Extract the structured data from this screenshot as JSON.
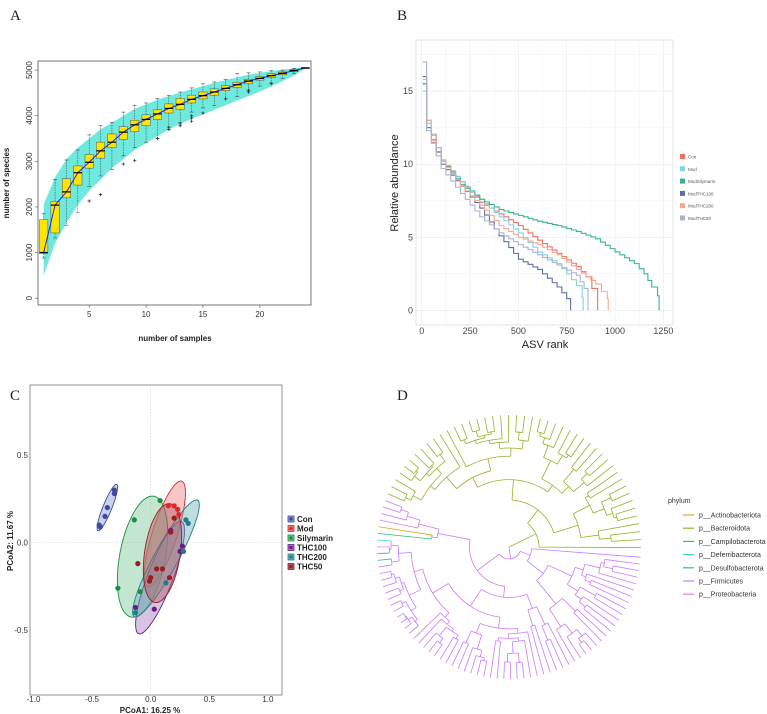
{
  "panels": {
    "a": "A",
    "b": "B",
    "c": "C",
    "d": "D"
  },
  "chart_data": [
    {
      "type": "box",
      "panel": "A",
      "xlabel": "number of samples",
      "ylabel": "number of species",
      "xlim": [
        0.5,
        24.5
      ],
      "ylim": [
        -150,
        5200
      ],
      "xticks": [
        5,
        10,
        15,
        20
      ],
      "yticks": [
        0,
        1000,
        2000,
        3000,
        4000,
        5000
      ],
      "box_color": "#ffe400",
      "band_color": "#6fe8de",
      "median_line_color": "#1f2bd6",
      "x": [
        1,
        2,
        3,
        4,
        5,
        6,
        7,
        8,
        9,
        10,
        11,
        12,
        13,
        14,
        15,
        16,
        17,
        18,
        19,
        20,
        21,
        22,
        23,
        24
      ],
      "median": [
        1000,
        2040,
        2330,
        2750,
        2980,
        3230,
        3420,
        3640,
        3800,
        3920,
        4040,
        4160,
        4250,
        4360,
        4440,
        4520,
        4600,
        4680,
        4760,
        4820,
        4880,
        4930,
        4990,
        5050
      ],
      "q1": [
        980,
        1430,
        2200,
        2480,
        2850,
        3070,
        3300,
        3480,
        3650,
        3780,
        3920,
        4060,
        4140,
        4280,
        4370,
        4450,
        4550,
        4620,
        4700,
        4780,
        4840,
        4900,
        4970,
        5050
      ],
      "q3": [
        1720,
        2120,
        2620,
        2900,
        3150,
        3420,
        3600,
        3760,
        3900,
        4020,
        4130,
        4260,
        4380,
        4450,
        4520,
        4590,
        4660,
        4730,
        4800,
        4860,
        4920,
        4960,
        5010,
        5050
      ],
      "whisker_low": [
        880,
        1320,
        1600,
        1870,
        2450,
        2680,
        2820,
        3120,
        3300,
        3420,
        3500,
        3700,
        3850,
        4080,
        4170,
        4220,
        4370,
        4420,
        4560,
        4650,
        4720,
        4820,
        4920,
        5050
      ],
      "whisker_high": [
        1850,
        2600,
        3030,
        3250,
        3580,
        3780,
        3850,
        4080,
        4230,
        4280,
        4380,
        4450,
        4520,
        4610,
        4700,
        4740,
        4800,
        4920,
        4940,
        4960,
        4990,
        5000,
        5040,
        5050
      ],
      "outliers": [
        [
          5,
          2130
        ],
        [
          6,
          2270
        ],
        [
          8,
          2940
        ],
        [
          9,
          3020
        ],
        [
          11,
          3500
        ],
        [
          12,
          3700
        ],
        [
          12,
          3750
        ],
        [
          13,
          3780
        ],
        [
          13,
          3820
        ],
        [
          14,
          3880
        ],
        [
          14,
          3950
        ],
        [
          14,
          4000
        ],
        [
          15,
          4060
        ],
        [
          17,
          4370
        ],
        [
          19,
          4520
        ],
        [
          19,
          4560
        ],
        [
          21,
          4700
        ]
      ],
      "band_upper": [
        2050,
        2650,
        3050,
        3300,
        3500,
        3700,
        3850,
        4000,
        4150,
        4250,
        4350,
        4430,
        4510,
        4580,
        4650,
        4720,
        4780,
        4840,
        4900,
        4940,
        4980,
        5010,
        5040,
        5060
      ],
      "band_lower": [
        500,
        1200,
        1650,
        2050,
        2350,
        2600,
        2850,
        3050,
        3250,
        3400,
        3550,
        3700,
        3820,
        3930,
        4030,
        4130,
        4230,
        4330,
        4430,
        4530,
        4640,
        4760,
        4880,
        5040
      ]
    },
    {
      "type": "line",
      "panel": "B",
      "xlabel": "ASV rank",
      "ylabel": "Relative abundance",
      "xlim": [
        -30,
        1300
      ],
      "ylim": [
        -1,
        18.5
      ],
      "xticks": [
        0,
        250,
        500,
        750,
        1000,
        1250
      ],
      "yticks": [
        0,
        5,
        10,
        15
      ],
      "grid": true,
      "legend_position": "right",
      "series": [
        {
          "name": "Con",
          "color": "#f0705f",
          "points": [
            [
              5,
              15.5
            ],
            [
              25,
              13
            ],
            [
              50,
              11.5
            ],
            [
              100,
              10.2
            ],
            [
              200,
              8.8
            ],
            [
              300,
              7.4
            ],
            [
              400,
              6.6
            ],
            [
              500,
              5.8
            ],
            [
              600,
              4.8
            ],
            [
              700,
              3.9
            ],
            [
              800,
              3.0
            ],
            [
              850,
              2.3
            ],
            [
              880,
              1.5
            ],
            [
              910,
              0.7
            ],
            [
              910,
              0
            ]
          ]
        },
        {
          "name": "Mod",
          "color": "#7fd3e3",
          "points": [
            [
              5,
              15
            ],
            [
              25,
              12.8
            ],
            [
              100,
              10.3
            ],
            [
              200,
              8.8
            ],
            [
              300,
              7.6
            ],
            [
              400,
              6.4
            ],
            [
              500,
              5.3
            ],
            [
              600,
              4.0
            ],
            [
              700,
              3.2
            ],
            [
              750,
              2.5
            ],
            [
              800,
              1.7
            ],
            [
              830,
              0.9
            ],
            [
              835,
              0
            ]
          ]
        },
        {
          "name": "ModSilymarin",
          "color": "#35b58f",
          "points": [
            [
              5,
              15.5
            ],
            [
              25,
              13
            ],
            [
              100,
              10.2
            ],
            [
              200,
              8.6
            ],
            [
              300,
              7.6
            ],
            [
              400,
              6.9
            ],
            [
              500,
              6.5
            ],
            [
              600,
              6.1
            ],
            [
              700,
              5.8
            ],
            [
              800,
              5.4
            ],
            [
              900,
              4.9
            ],
            [
              1000,
              4.0
            ],
            [
              1100,
              3.2
            ],
            [
              1150,
              2.5
            ],
            [
              1190,
              1.6
            ],
            [
              1220,
              1.0
            ],
            [
              1228,
              0
            ]
          ]
        },
        {
          "name": "ModTHC100",
          "color": "#5a6fa8",
          "points": [
            [
              5,
              16
            ],
            [
              25,
              12.5
            ],
            [
              100,
              10
            ],
            [
              200,
              8.5
            ],
            [
              300,
              7.0
            ],
            [
              400,
              5.1
            ],
            [
              450,
              4.3
            ],
            [
              500,
              3.5
            ],
            [
              600,
              2.8
            ],
            [
              700,
              1.6
            ],
            [
              750,
              0.8
            ],
            [
              770,
              0
            ]
          ]
        },
        {
          "name": "ModTHC200",
          "color": "#f7a98d",
          "points": [
            [
              5,
              15.8
            ],
            [
              25,
              13
            ],
            [
              100,
              10.2
            ],
            [
              200,
              8.5
            ],
            [
              300,
              7.2
            ],
            [
              400,
              5.8
            ],
            [
              500,
              5.0
            ],
            [
              600,
              4.5
            ],
            [
              700,
              3.8
            ],
            [
              800,
              2.8
            ],
            [
              900,
              1.8
            ],
            [
              960,
              0.8
            ],
            [
              965,
              0
            ]
          ]
        },
        {
          "name": "ModTHC50",
          "color": "#a8b2d2",
          "points": [
            [
              5,
              17
            ],
            [
              25,
              12.3
            ],
            [
              100,
              9.7
            ],
            [
              200,
              8.0
            ],
            [
              300,
              6.4
            ],
            [
              400,
              5.3
            ],
            [
              500,
              4.5
            ],
            [
              600,
              3.8
            ],
            [
              700,
              3.1
            ],
            [
              800,
              2.4
            ],
            [
              840,
              1.5
            ],
            [
              860,
              0
            ]
          ]
        }
      ]
    },
    {
      "type": "scatter",
      "panel": "C",
      "xlabel": "PCoA1:  16.25 %",
      "ylabel": "PCoA2:  11.67 %",
      "xlim": [
        -1.03,
        1.12
      ],
      "ylim": [
        -0.87,
        0.9
      ],
      "xticks": [
        "-1.0",
        "-0.5",
        "0.0",
        "0.5",
        "1.0"
      ],
      "yticks": [
        "-0.5",
        "0.0",
        "0.5"
      ],
      "legend_position": "right",
      "series": [
        {
          "name": "Con",
          "color": "#3b4aa0",
          "fill": "#8f99d0",
          "points": [
            [
              -0.31,
              0.28
            ],
            [
              -0.31,
              0.3
            ],
            [
              -0.37,
              0.2
            ],
            [
              -0.39,
              0.15
            ],
            [
              -0.43,
              0.09
            ],
            [
              -0.44,
              0.1
            ]
          ],
          "ellipse": {
            "center": [
              -0.37,
              0.2
            ],
            "major": 0.155,
            "minor": 0.035,
            "angle_deg": 58
          }
        },
        {
          "name": "Mod",
          "color": "#e0262b",
          "fill": "#f08080",
          "points": [
            [
              0.15,
              0.21
            ],
            [
              0.2,
              0.21
            ],
            [
              0.23,
              0.19
            ],
            [
              0.24,
              0.16
            ]
          ],
          "ellipse": {
            "center": [
              0.12,
              0.05
            ],
            "major": 0.335,
            "minor": 0.1,
            "angle_deg": 63
          }
        },
        {
          "name": "Silymarin",
          "color": "#1a8c45",
          "fill": "#7cc79a",
          "points": [
            [
              0.08,
              0.24
            ],
            [
              -0.14,
              0.13
            ],
            [
              -0.28,
              -0.26
            ],
            [
              -0.09,
              -0.28
            ]
          ],
          "ellipse": {
            "center": [
              -0.07,
              -0.08
            ],
            "major": 0.36,
            "minor": 0.19,
            "angle_deg": 71
          }
        },
        {
          "name": "THC100",
          "color": "#6a1b8a",
          "fill": "#a77cc0",
          "points": [
            [
              0.03,
              -0.38
            ],
            [
              -0.13,
              -0.37
            ],
            [
              0.25,
              -0.05
            ],
            [
              0.17,
              0.07
            ],
            [
              0.27,
              -0.02
            ]
          ],
          "ellipse": {
            "center": [
              0.08,
              -0.2
            ],
            "major": 0.37,
            "minor": 0.1,
            "angle_deg": 59
          }
        },
        {
          "name": "THC200",
          "color": "#1f7f86",
          "fill": "#6fb4b8",
          "points": [
            [
              -0.13,
              -0.4
            ],
            [
              0.3,
              0.13
            ],
            [
              0.32,
              0.11
            ],
            [
              0.28,
              -0.05
            ],
            [
              0.13,
              -0.23
            ]
          ],
          "ellipse": {
            "center": [
              0.13,
              -0.09
            ],
            "major": 0.43,
            "minor": 0.09,
            "angle_deg": 50
          }
        },
        {
          "name": "THC50",
          "color": "#9b1c24",
          "fill": "#b05a60",
          "points": [
            [
              -0.11,
              -0.12
            ],
            [
              0.05,
              -0.15
            ],
            [
              0.1,
              -0.15
            ],
            [
              0.0,
              -0.2
            ],
            [
              -0.01,
              -0.22
            ],
            [
              0.16,
              -0.2
            ],
            [
              0.2,
              0.14
            ],
            [
              0.17,
              0.06
            ]
          ],
          "ellipse": {
            "center": [
              0.1,
              -0.06
            ],
            "major": 0.29,
            "minor": 0.15,
            "angle_deg": 75
          }
        }
      ]
    },
    {
      "type": "tree",
      "panel": "D",
      "legend_title": "phylum",
      "legend_position": "right",
      "phyla": [
        {
          "name": "p__Actinobacteriota",
          "color": "#e0a020"
        },
        {
          "name": "p__Bacteroidota",
          "color": "#8db52b"
        },
        {
          "name": "p__Campilobacterota",
          "color": "#2fbf71"
        },
        {
          "name": "p__Deferribacterota",
          "color": "#3dd6d0"
        },
        {
          "name": "p__Desulfobacterota",
          "color": "#2aa7e0"
        },
        {
          "name": "p__Firmicutes",
          "color": "#c77cff"
        },
        {
          "name": "p__Proteobacteria",
          "color": "#f07fdc"
        }
      ]
    }
  ]
}
